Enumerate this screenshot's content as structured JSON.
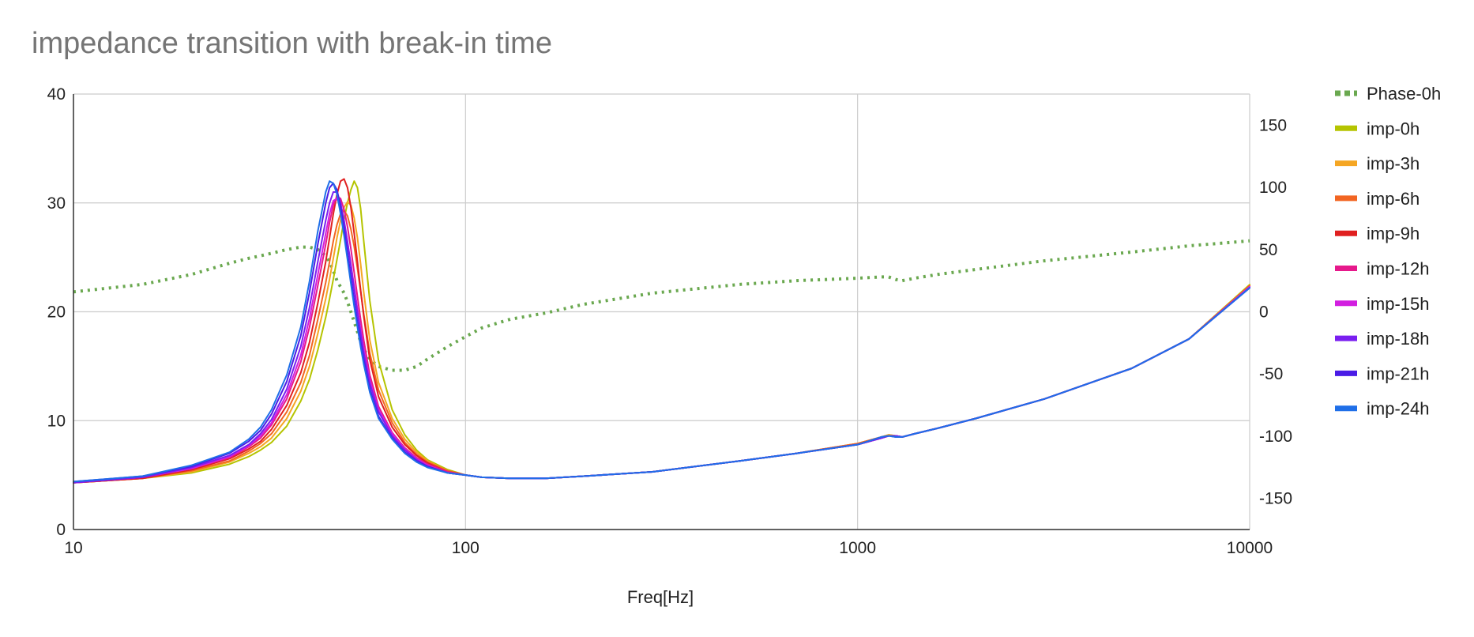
{
  "chart_data": {
    "type": "line",
    "title": "impedance transition with break-in time",
    "xlabel": "Freq[Hz]",
    "ylabel": "",
    "y2label": "",
    "x_scale": "log",
    "xlim": [
      10,
      10000
    ],
    "ylim": [
      0,
      40
    ],
    "y2lim": [
      -175,
      175
    ],
    "x_ticks": [
      "10",
      "100",
      "1000",
      "10000"
    ],
    "y_ticks": [
      "0",
      "10",
      "20",
      "30",
      "40"
    ],
    "y2_ticks": [
      "-150",
      "-100",
      "-50",
      "0",
      "50",
      "100",
      "150"
    ],
    "grid": true,
    "legend_position": "right",
    "x": [
      10,
      15,
      20,
      25,
      28,
      30,
      32,
      35,
      38,
      40,
      42,
      44,
      45,
      46,
      47,
      48,
      49,
      50,
      51,
      52,
      53,
      54,
      55,
      57,
      60,
      65,
      70,
      75,
      80,
      90,
      100,
      110,
      130,
      160,
      200,
      300,
      500,
      700,
      1000,
      1150,
      1200,
      1250,
      1300,
      1400,
      1600,
      2000,
      3000,
      5000,
      7000,
      10000
    ],
    "series": [
      {
        "name": "Phase-0h",
        "axis": "right",
        "style": "dotted",
        "color": "#6aa84f",
        "values": [
          16,
          22,
          30,
          39,
          43,
          45,
          47,
          50,
          52,
          52,
          50,
          45,
          40,
          33,
          25,
          20,
          15,
          8,
          0,
          -8,
          -16,
          -24,
          -30,
          -38,
          -44,
          -47,
          -47,
          -44,
          -38,
          -28,
          -20,
          -13,
          -6,
          -1,
          6,
          15,
          22,
          25,
          27,
          28,
          28,
          26,
          25,
          27,
          30,
          34,
          41,
          48,
          53,
          57
        ]
      },
      {
        "name": "imp-0h",
        "axis": "left",
        "color": "#b5c400",
        "values": [
          4.3,
          4.7,
          5.2,
          6.0,
          6.7,
          7.3,
          8.0,
          9.5,
          11.8,
          13.8,
          16.5,
          19.5,
          21.2,
          23.0,
          24.8,
          26.6,
          28.5,
          30.0,
          31.2,
          32.0,
          31.4,
          29.5,
          26.5,
          21.0,
          15.5,
          11.0,
          8.7,
          7.3,
          6.4,
          5.5,
          5.0,
          4.8,
          4.7,
          4.7,
          4.9,
          5.3,
          6.3,
          7.0,
          7.9,
          8.5,
          8.7,
          8.6,
          8.5,
          8.8,
          9.3,
          10.2,
          12.0,
          14.8,
          17.5,
          22.5
        ]
      },
      {
        "name": "imp-3h",
        "axis": "left",
        "color": "#f5a623",
        "values": [
          4.3,
          4.7,
          5.3,
          6.2,
          7.0,
          7.6,
          8.4,
          10.2,
          12.7,
          15.0,
          18.0,
          21.2,
          23.0,
          24.9,
          26.8,
          28.4,
          29.6,
          30.1,
          29.8,
          28.6,
          26.8,
          24.4,
          21.8,
          17.4,
          13.5,
          10.2,
          8.3,
          7.1,
          6.3,
          5.4,
          5.0,
          4.8,
          4.7,
          4.7,
          4.9,
          5.3,
          6.3,
          7.0,
          7.9,
          8.5,
          8.7,
          8.6,
          8.5,
          8.8,
          9.3,
          10.2,
          12.0,
          14.8,
          17.5,
          22.4
        ]
      },
      {
        "name": "imp-6h",
        "axis": "left",
        "color": "#f26522",
        "values": [
          4.3,
          4.7,
          5.4,
          6.3,
          7.2,
          7.9,
          8.8,
          10.8,
          13.5,
          16.0,
          19.3,
          22.7,
          24.6,
          26.5,
          28.0,
          29.0,
          29.3,
          28.8,
          27.6,
          26.0,
          24.0,
          21.9,
          19.8,
          16.2,
          12.8,
          9.8,
          8.0,
          6.9,
          6.2,
          5.4,
          5.0,
          4.8,
          4.7,
          4.7,
          4.9,
          5.3,
          6.3,
          7.0,
          7.9,
          8.5,
          8.6,
          8.6,
          8.5,
          8.8,
          9.3,
          10.2,
          12.0,
          14.8,
          17.5,
          22.4
        ]
      },
      {
        "name": "imp-9h",
        "axis": "left",
        "color": "#e02020",
        "values": [
          4.3,
          4.7,
          5.5,
          6.5,
          7.4,
          8.1,
          9.2,
          11.4,
          14.4,
          17.2,
          20.8,
          24.6,
          26.8,
          29.0,
          30.8,
          32.0,
          32.2,
          31.4,
          29.6,
          27.2,
          24.6,
          22.0,
          19.6,
          15.6,
          12.2,
          9.4,
          7.8,
          6.8,
          6.1,
          5.3,
          5.0,
          4.8,
          4.7,
          4.7,
          4.9,
          5.3,
          6.3,
          7.0,
          7.8,
          8.4,
          8.6,
          8.6,
          8.5,
          8.8,
          9.3,
          10.2,
          12.0,
          14.8,
          17.5,
          22.3
        ]
      },
      {
        "name": "imp-12h",
        "axis": "left",
        "color": "#e6198b",
        "values": [
          4.3,
          4.8,
          5.6,
          6.6,
          7.6,
          8.4,
          9.6,
          12.0,
          15.4,
          18.6,
          22.4,
          26.2,
          28.2,
          29.8,
          30.6,
          30.4,
          29.4,
          27.8,
          25.8,
          23.6,
          21.4,
          19.3,
          17.4,
          14.2,
          11.3,
          8.9,
          7.5,
          6.6,
          6.0,
          5.3,
          5.0,
          4.8,
          4.7,
          4.7,
          4.9,
          5.3,
          6.3,
          7.0,
          7.8,
          8.4,
          8.6,
          8.6,
          8.5,
          8.8,
          9.3,
          10.2,
          12.0,
          14.8,
          17.5,
          22.3
        ]
      },
      {
        "name": "imp-15h",
        "axis": "left",
        "color": "#d21fe0",
        "values": [
          4.3,
          4.8,
          5.6,
          6.7,
          7.7,
          8.6,
          9.8,
          12.4,
          16.0,
          19.4,
          23.4,
          27.2,
          29.0,
          30.2,
          30.4,
          29.6,
          28.2,
          26.4,
          24.4,
          22.3,
          20.3,
          18.4,
          16.6,
          13.7,
          11.0,
          8.8,
          7.4,
          6.5,
          5.9,
          5.2,
          5.0,
          4.8,
          4.7,
          4.7,
          4.9,
          5.3,
          6.3,
          7.0,
          7.8,
          8.4,
          8.6,
          8.6,
          8.5,
          8.8,
          9.3,
          10.2,
          12.0,
          14.8,
          17.5,
          22.3
        ]
      },
      {
        "name": "imp-18h",
        "axis": "left",
        "color": "#7a1ff0",
        "values": [
          4.3,
          4.8,
          5.7,
          6.8,
          7.8,
          8.8,
          10.1,
          12.9,
          16.8,
          20.4,
          24.6,
          28.4,
          30.0,
          31.0,
          31.0,
          30.0,
          28.4,
          26.4,
          24.2,
          22.0,
          19.9,
          18.0,
          16.2,
          13.4,
          10.8,
          8.6,
          7.3,
          6.4,
          5.8,
          5.2,
          5.0,
          4.8,
          4.7,
          4.7,
          4.9,
          5.3,
          6.3,
          7.0,
          7.8,
          8.4,
          8.6,
          8.6,
          8.5,
          8.8,
          9.3,
          10.2,
          12.0,
          14.8,
          17.5,
          22.2
        ]
      },
      {
        "name": "imp-21h",
        "axis": "left",
        "color": "#4a1ce6",
        "values": [
          4.4,
          4.9,
          5.8,
          7.0,
          8.1,
          9.1,
          10.6,
          13.6,
          17.8,
          21.8,
          26.2,
          30.0,
          31.4,
          31.8,
          31.2,
          29.6,
          27.6,
          25.4,
          23.2,
          21.0,
          19.0,
          17.2,
          15.6,
          12.9,
          10.4,
          8.4,
          7.1,
          6.3,
          5.8,
          5.2,
          5.0,
          4.8,
          4.7,
          4.7,
          4.9,
          5.3,
          6.3,
          7.0,
          7.8,
          8.5,
          8.6,
          8.5,
          8.5,
          8.8,
          9.3,
          10.2,
          12.0,
          14.8,
          17.5,
          22.2
        ]
      },
      {
        "name": "imp-24h",
        "axis": "left",
        "color": "#1f6fe8",
        "values": [
          4.4,
          4.9,
          5.9,
          7.1,
          8.3,
          9.4,
          11.0,
          14.2,
          18.6,
          22.8,
          27.4,
          31.0,
          32.0,
          31.8,
          30.8,
          29.0,
          27.0,
          24.8,
          22.6,
          20.5,
          18.6,
          16.8,
          15.2,
          12.6,
          10.2,
          8.3,
          7.0,
          6.2,
          5.7,
          5.2,
          5.0,
          4.8,
          4.7,
          4.7,
          4.9,
          5.3,
          6.3,
          7.0,
          7.8,
          8.5,
          8.6,
          8.5,
          8.5,
          8.8,
          9.3,
          10.2,
          12.0,
          14.8,
          17.5,
          22.2
        ]
      }
    ]
  }
}
